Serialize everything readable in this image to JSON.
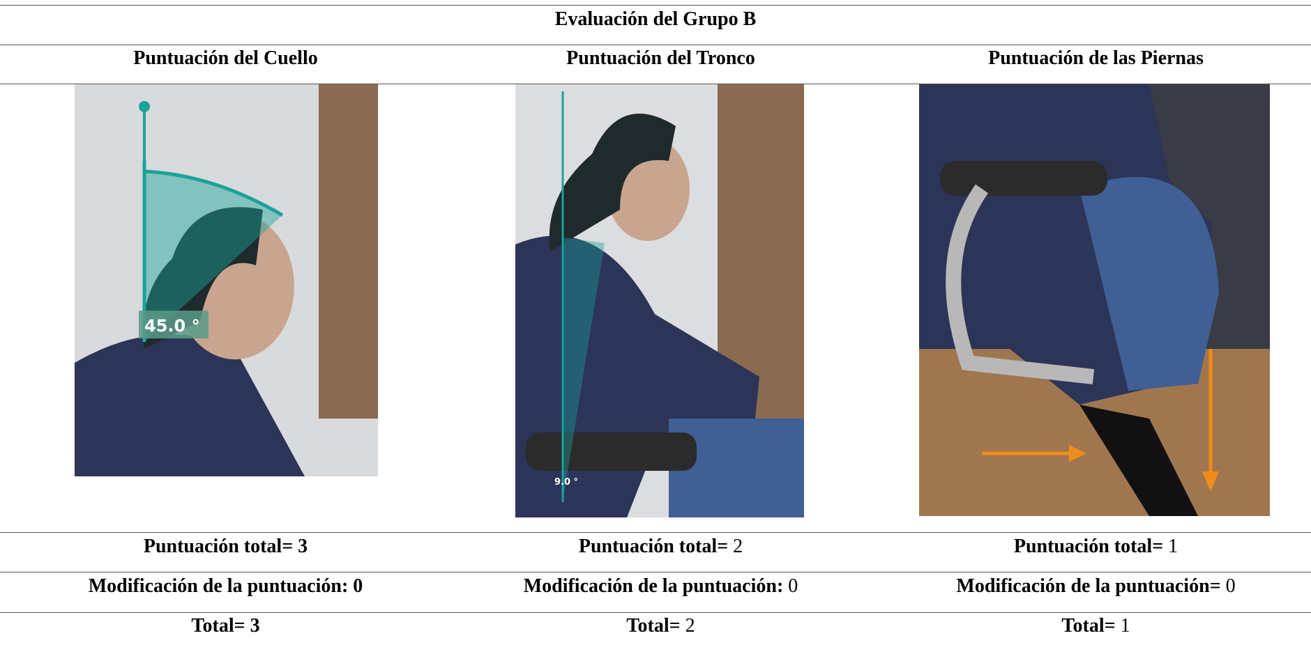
{
  "table": {
    "title": "Evaluación del Grupo B",
    "headers": [
      "Puntuación del Cuello",
      "Puntuación del Tronco",
      "Puntuación de las Piernas"
    ],
    "images": [
      {
        "annotation": "45.0 °"
      },
      {
        "annotation": "9.0 °"
      },
      {}
    ],
    "rows": [
      [
        {
          "label": "Puntuación total=",
          "value": 3
        },
        {
          "label": "Puntuación total=",
          "value": 2
        },
        {
          "label": "Puntuación total=",
          "value": 1
        }
      ],
      [
        {
          "label": "Modificación de la puntuación:",
          "value": 0
        },
        {
          "label": "Modificación de la puntuación:",
          "value": 0
        },
        {
          "label": "Modificación de la puntuación=",
          "value": 0
        }
      ],
      [
        {
          "label": "Total=",
          "value": 3
        },
        {
          "label": "Total=",
          "value": 2
        },
        {
          "label": "Total=",
          "value": 1
        }
      ]
    ]
  }
}
